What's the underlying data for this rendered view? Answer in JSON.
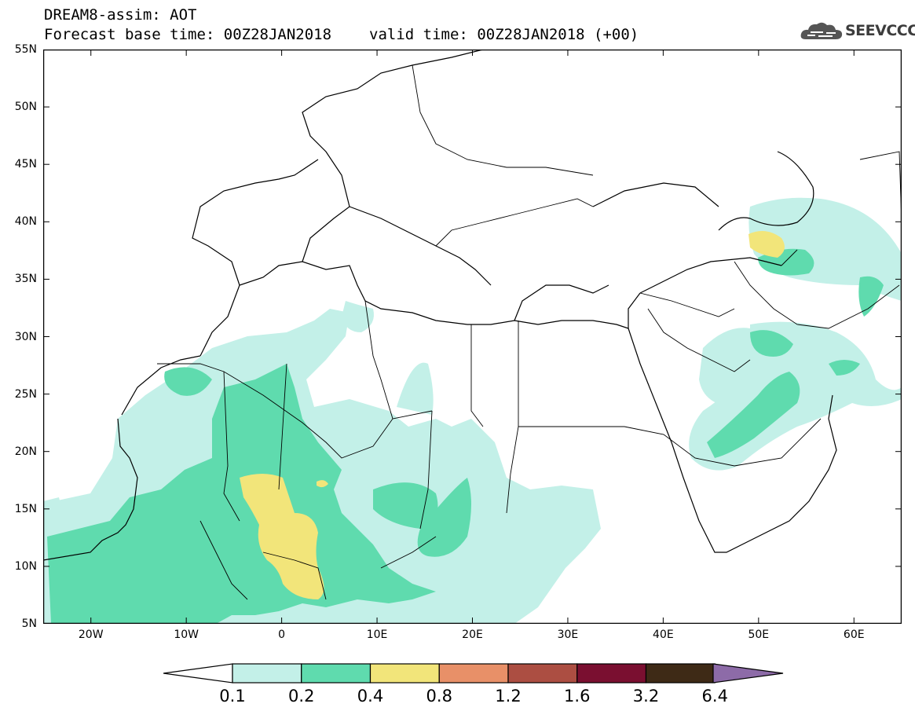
{
  "header": {
    "title_line1": "DREAM8-assim: AOT",
    "base_time": "Forecast base time: 00Z28JAN2018",
    "valid_time": "valid time: 00Z28JAN2018 (+00)"
  },
  "logo": {
    "text": "SEEVCCC",
    "icon": "cloud-icon"
  },
  "map": {
    "lat_labels": [
      "55N",
      "50N",
      "45N",
      "40N",
      "35N",
      "30N",
      "25N",
      "20N",
      "15N",
      "10N",
      "5N"
    ],
    "lon_labels": [
      "20W",
      "10W",
      "0",
      "10E",
      "20E",
      "30E",
      "40E",
      "50E",
      "60E"
    ],
    "lon_range": [
      -25,
      65
    ],
    "lat_range": [
      5,
      55
    ]
  },
  "legend": {
    "levels": [
      "0.1",
      "0.2",
      "0.4",
      "0.8",
      "1.2",
      "1.6",
      "3.2",
      "6.4"
    ],
    "colors": [
      "#c3f0e8",
      "#5fdbae",
      "#f2e57a",
      "#e89068",
      "#ac4e42",
      "#7a0f30",
      "#3e2a16",
      "#8d6ba8"
    ]
  }
}
